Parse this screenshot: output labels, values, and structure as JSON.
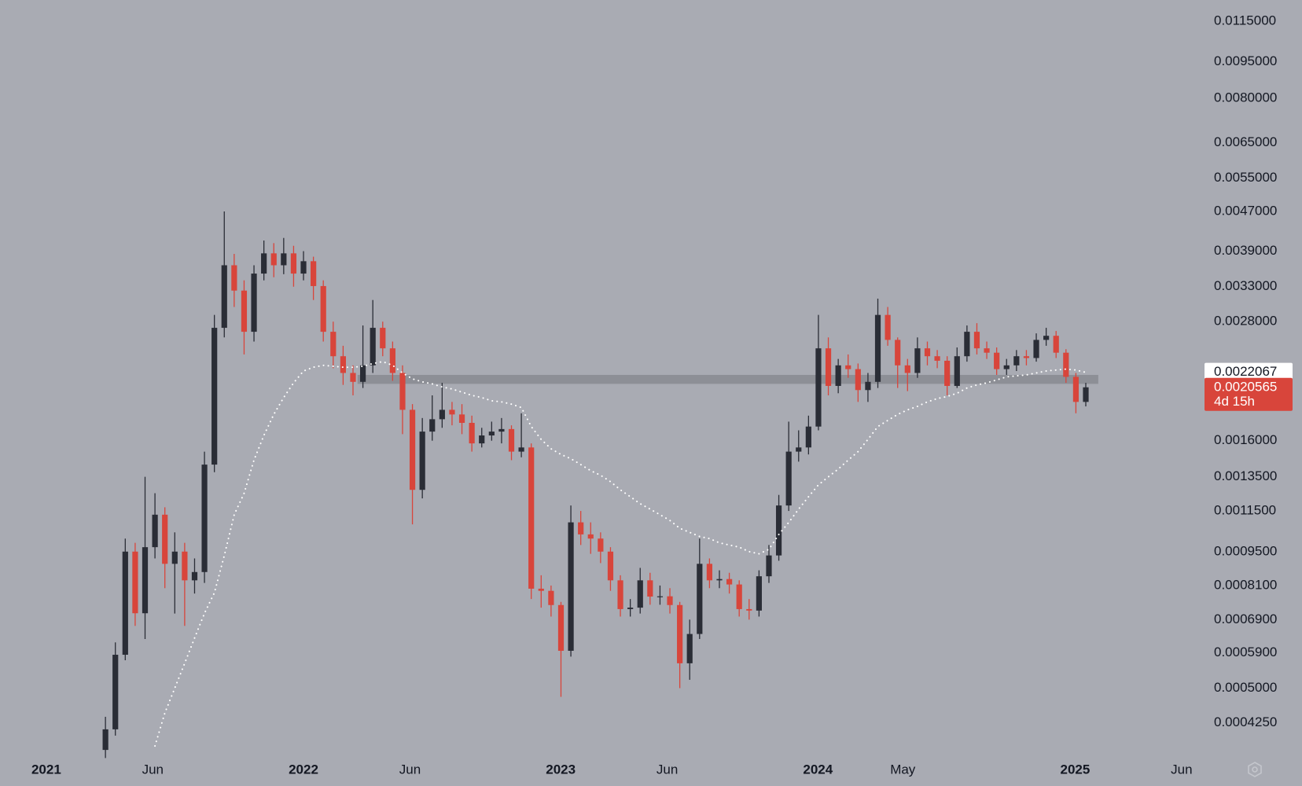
{
  "chart_data": {
    "type": "candlestick",
    "log_scale": true,
    "background": "#a9abb3",
    "up_color": "#2a2d36",
    "down_color": "#d8453b",
    "x": [
      2021.23,
      2021.2685,
      2021.307,
      2021.3455,
      2021.384,
      2021.4225,
      2021.461,
      2021.4995,
      2021.538,
      2021.5765,
      2021.615,
      2021.6535,
      2021.692,
      2021.7305,
      2021.769,
      2021.8075,
      2021.846,
      2021.8845,
      2021.923,
      2021.9615,
      2022.0,
      2022.0385,
      2022.077,
      2022.1155,
      2022.154,
      2022.1925,
      2022.231,
      2022.2695,
      2022.308,
      2022.3465,
      2022.385,
      2022.4235,
      2022.462,
      2022.5005,
      2022.539,
      2022.5775,
      2022.616,
      2022.6545,
      2022.693,
      2022.7315,
      2022.77,
      2022.8085,
      2022.847,
      2022.8855,
      2022.924,
      2022.9625,
      2023.001,
      2023.0395,
      2023.078,
      2023.1165,
      2023.155,
      2023.1935,
      2023.232,
      2023.2705,
      2023.309,
      2023.3475,
      2023.386,
      2023.4245,
      2023.463,
      2023.5015,
      2023.54,
      2023.5785,
      2023.617,
      2023.6555,
      2023.694,
      2023.7325,
      2023.771,
      2023.8095,
      2023.848,
      2023.8865,
      2023.925,
      2023.9635,
      2024.002,
      2024.0405,
      2024.079,
      2024.1175,
      2024.156,
      2024.1945,
      2024.233,
      2024.2715,
      2024.31,
      2024.3485,
      2024.387,
      2024.4255,
      2024.464,
      2024.5025,
      2024.541,
      2024.5795,
      2024.618,
      2024.6565,
      2024.695,
      2024.7335,
      2024.772,
      2024.8105,
      2024.849,
      2024.8875,
      2024.926,
      2024.9645,
      2025.003,
      2025.0415
    ],
    "open": [
      0.000374,
      0.000412,
      0.000585,
      0.00095,
      0.000711,
      0.00097,
      0.00113,
      0.000897,
      0.00095,
      0.00083,
      0.000863,
      0.00143,
      0.00272,
      0.00365,
      0.00324,
      0.00267,
      0.00351,
      0.00386,
      0.00365,
      0.00386,
      0.00351,
      0.00372,
      0.00331,
      0.00267,
      0.00238,
      0.0022,
      0.00211,
      0.00228,
      0.00272,
      0.00247,
      0.0022,
      0.00185,
      0.00127,
      0.00167,
      0.00177,
      0.00185,
      0.00181,
      0.00174,
      0.00158,
      0.00164,
      0.00167,
      0.00169,
      0.00152,
      0.00155,
      0.000798,
      0.00079,
      0.000739,
      0.000596,
      0.00109,
      0.00103,
      0.00101,
      0.00095,
      0.00083,
      0.000725,
      0.00073,
      0.00083,
      0.000769,
      0.00077,
      0.000739,
      0.000562,
      0.000645,
      0.000897,
      0.00083,
      0.000835,
      0.000814,
      0.000725,
      0.00072,
      0.000846,
      0.000933,
      0.00118,
      0.00152,
      0.00155,
      0.00171,
      0.00247,
      0.00207,
      0.00228,
      0.00224,
      0.00203,
      0.00211,
      0.00289,
      0.00257,
      0.00228,
      0.0022,
      0.00247,
      0.00238,
      0.00233,
      0.00207,
      0.00238,
      0.00267,
      0.00247,
      0.00242,
      0.00224,
      0.00228,
      0.00238,
      0.00236,
      0.00257,
      0.00262,
      0.00242,
      0.00216,
      0.00192
    ],
    "high": [
      0.000437,
      0.00062,
      0.00101,
      0.00099,
      0.00135,
      0.00125,
      0.00117,
      0.00104,
      0.00099,
      0.00092,
      0.00152,
      0.00289,
      0.0047,
      0.00385,
      0.0034,
      0.00365,
      0.0041,
      0.00405,
      0.00415,
      0.004,
      0.0039,
      0.0038,
      0.0034,
      0.0028,
      0.0025,
      0.00228,
      0.00275,
      0.0031,
      0.0028,
      0.00255,
      0.00228,
      0.0019,
      0.00178,
      0.00198,
      0.0021,
      0.00192,
      0.0019,
      0.0018,
      0.0017,
      0.00175,
      0.00178,
      0.00172,
      0.00182,
      0.00158,
      0.00085,
      0.00081,
      0.00075,
      0.00118,
      0.00115,
      0.00109,
      0.00104,
      0.00097,
      0.00085,
      0.00076,
      0.00088,
      0.00086,
      0.00081,
      0.0008,
      0.00075,
      0.00069,
      0.00101,
      0.00092,
      0.00087,
      0.00086,
      0.00083,
      0.00076,
      0.00087,
      0.00098,
      0.00124,
      0.00175,
      0.00168,
      0.0018,
      0.00289,
      0.0026,
      0.00235,
      0.0024,
      0.0023,
      0.0022,
      0.00312,
      0.003,
      0.0026,
      0.00235,
      0.0026,
      0.00255,
      0.00245,
      0.00238,
      0.00248,
      0.00275,
      0.00278,
      0.00255,
      0.00248,
      0.00235,
      0.00245,
      0.00245,
      0.00265,
      0.00272,
      0.00268,
      0.00246,
      0.0022,
      0.0021
    ],
    "low": [
      0.00036,
      0.0004,
      0.00057,
      0.00067,
      0.00063,
      0.00092,
      0.0008,
      0.00071,
      0.00067,
      0.00078,
      0.00082,
      0.00138,
      0.0026,
      0.003,
      0.0024,
      0.00255,
      0.0034,
      0.00345,
      0.0035,
      0.0033,
      0.0034,
      0.0031,
      0.00255,
      0.00225,
      0.00208,
      0.00198,
      0.00205,
      0.0022,
      0.00238,
      0.00212,
      0.00165,
      0.00108,
      0.00122,
      0.0016,
      0.0017,
      0.00172,
      0.00165,
      0.00152,
      0.00155,
      0.0016,
      0.00158,
      0.00146,
      0.00148,
      0.00076,
      0.00073,
      0.0007,
      0.00048,
      0.00058,
      0.00098,
      0.00094,
      0.0009,
      0.00079,
      0.0007,
      0.0007,
      0.00071,
      0.00074,
      0.00074,
      0.00071,
      0.0005,
      0.00052,
      0.00063,
      0.0008,
      0.0008,
      0.00078,
      0.0007,
      0.00069,
      0.0007,
      0.00082,
      0.00091,
      0.00115,
      0.00145,
      0.0015,
      0.00168,
      0.00198,
      0.002,
      0.00215,
      0.00192,
      0.00192,
      0.00205,
      0.0025,
      0.00205,
      0.00202,
      0.00215,
      0.00228,
      0.00225,
      0.00198,
      0.00205,
      0.00232,
      0.0024,
      0.00235,
      0.00218,
      0.00218,
      0.00222,
      0.00228,
      0.00232,
      0.0025,
      0.00236,
      0.0021,
      0.00182,
      0.00188
    ],
    "close": [
      0.000412,
      0.000585,
      0.00095,
      0.000711,
      0.00097,
      0.00113,
      0.000897,
      0.00095,
      0.00083,
      0.000863,
      0.00143,
      0.00272,
      0.00365,
      0.00324,
      0.00267,
      0.00351,
      0.00386,
      0.00365,
      0.00386,
      0.00351,
      0.00372,
      0.00331,
      0.00267,
      0.00238,
      0.0022,
      0.00211,
      0.00228,
      0.00272,
      0.00247,
      0.0022,
      0.00185,
      0.00127,
      0.00167,
      0.00177,
      0.00185,
      0.00181,
      0.00174,
      0.00158,
      0.00164,
      0.00167,
      0.00169,
      0.00152,
      0.00155,
      0.000798,
      0.00079,
      0.000739,
      0.000596,
      0.00109,
      0.00103,
      0.00101,
      0.00095,
      0.00083,
      0.000725,
      0.00073,
      0.00083,
      0.000769,
      0.00077,
      0.000739,
      0.000562,
      0.000645,
      0.000897,
      0.00083,
      0.000835,
      0.000814,
      0.000725,
      0.00072,
      0.000846,
      0.000933,
      0.00118,
      0.00152,
      0.00155,
      0.00171,
      0.00247,
      0.00207,
      0.00228,
      0.00224,
      0.00203,
      0.00211,
      0.00289,
      0.00257,
      0.00228,
      0.0022,
      0.00247,
      0.00238,
      0.00233,
      0.00207,
      0.00238,
      0.00267,
      0.00247,
      0.00242,
      0.00224,
      0.00228,
      0.00238,
      0.00236,
      0.00257,
      0.00262,
      0.00242,
      0.00216,
      0.00192,
      0.0020565
    ],
    "ma": {
      "color": "#ffffff",
      "values": [
        null,
        null,
        null,
        null,
        null,
        0.000381,
        0.000445,
        0.0005,
        0.000562,
        0.000633,
        0.000711,
        0.000783,
        0.000933,
        0.00113,
        0.00125,
        0.00146,
        0.00164,
        0.00181,
        0.00196,
        0.0021,
        0.00222,
        0.00226,
        0.00228,
        0.00227,
        0.00226,
        0.00226,
        0.00227,
        0.0023,
        0.00232,
        0.00228,
        0.0022,
        0.00214,
        0.00211,
        0.00209,
        0.00206,
        0.00204,
        0.00201,
        0.00198,
        0.00196,
        0.00193,
        0.00192,
        0.0019,
        0.00187,
        0.00171,
        0.00161,
        0.00154,
        0.0015,
        0.00147,
        0.00143,
        0.00139,
        0.00136,
        0.00132,
        0.00127,
        0.00123,
        0.00119,
        0.00116,
        0.00113,
        0.0011,
        0.00106,
        0.00104,
        0.00102,
        0.00101,
        0.00099,
        0.00098,
        0.00097,
        0.00095,
        0.00094,
        0.00096,
        0.00103,
        0.00109,
        0.00116,
        0.00123,
        0.0013,
        0.00135,
        0.0014,
        0.00146,
        0.00152,
        0.00161,
        0.00171,
        0.00176,
        0.00181,
        0.00185,
        0.00188,
        0.00192,
        0.00195,
        0.00197,
        0.002,
        0.00205,
        0.00208,
        0.0021,
        0.00213,
        0.00216,
        0.00217,
        0.00218,
        0.0022,
        0.00222,
        0.00223,
        0.00224,
        0.00223,
        0.0022067
      ]
    },
    "zone": {
      "x": [
        2022.21,
        2025.09
      ],
      "y": [
        0.00209,
        0.00218
      ],
      "color": "#8d8f96"
    },
    "countdown": "4d 15h",
    "xlim": [
      2020.82,
      2025.5
    ],
    "ylim": [
      0.00037,
      0.0127
    ],
    "xticks": [
      2021,
      {
        "value": 2021.414,
        "label": "Jun"
      },
      2022,
      {
        "value": 2022.414,
        "label": "Jun"
      },
      2023,
      {
        "value": 2023.414,
        "label": "Jun"
      },
      2024,
      {
        "value": 2024.33,
        "label": "May"
      },
      2025,
      {
        "value": 2025.414,
        "label": "Jun"
      }
    ],
    "yticks": [
      {
        "value": 0.0115,
        "label": "0.0115000"
      },
      {
        "value": 0.0095,
        "label": "0.0095000"
      },
      {
        "value": 0.008,
        "label": "0.0080000"
      },
      {
        "value": 0.0065,
        "label": "0.0065000"
      },
      {
        "value": 0.0055,
        "label": "0.0055000"
      },
      {
        "value": 0.0047,
        "label": "0.0047000"
      },
      {
        "value": 0.0039,
        "label": "0.0039000"
      },
      {
        "value": 0.0033,
        "label": "0.0033000"
      },
      {
        "value": 0.0028,
        "label": "0.0028000"
      },
      {
        "value": 0.0016,
        "label": "0.0016000"
      },
      {
        "value": 0.00135,
        "label": "0.0013500"
      },
      {
        "value": 0.00115,
        "label": "0.0011500"
      },
      {
        "value": 0.00095,
        "label": "0.0009500"
      },
      {
        "value": 0.00081,
        "label": "0.0008100"
      },
      {
        "value": 0.00069,
        "label": "0.0006900"
      },
      {
        "value": 0.00059,
        "label": "0.0005900"
      },
      {
        "value": 0.0005,
        "label": "0.0005000"
      },
      {
        "value": 0.000425,
        "label": "0.0004250"
      }
    ]
  }
}
